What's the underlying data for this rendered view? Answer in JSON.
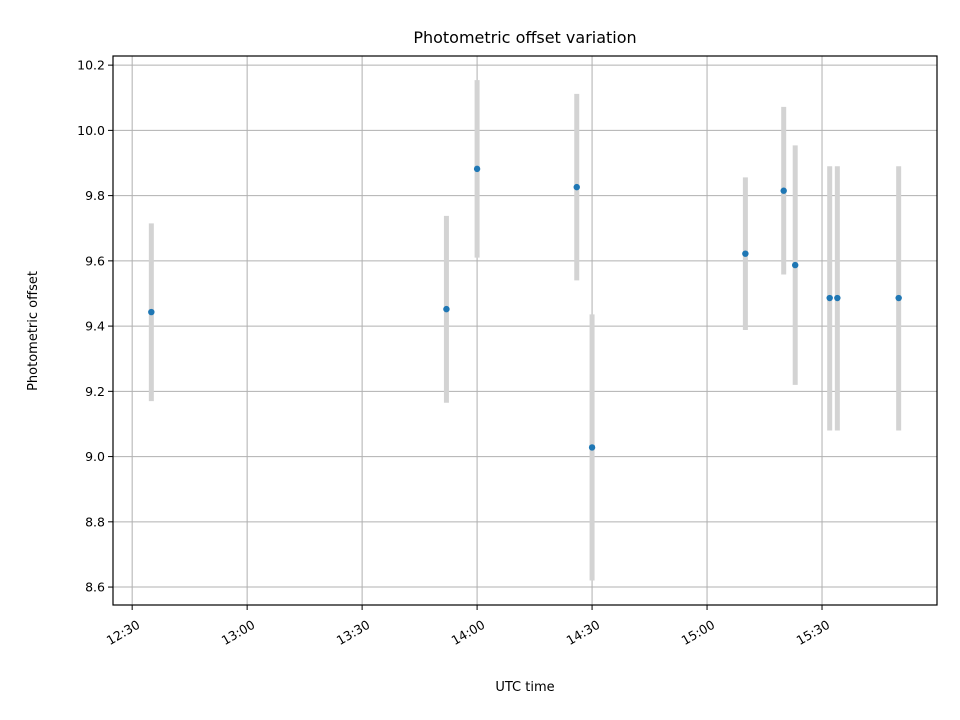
{
  "chart_data": {
    "type": "scatter",
    "title": "Photometric offset variation",
    "xlabel": "UTC time",
    "ylabel": "Photometric offset",
    "x_ticks": [
      "12:30",
      "13:00",
      "13:30",
      "14:00",
      "14:30",
      "15:00",
      "15:30"
    ],
    "xlim": [
      "12:25",
      "16:00"
    ],
    "y_ticks": [
      "8.6",
      "8.8",
      "9.0",
      "9.2",
      "9.4",
      "9.6",
      "9.8",
      "10.0",
      "10.2"
    ],
    "ylim": [
      8.545,
      10.228
    ],
    "grid": true,
    "colors": {
      "point": "#1f77b4",
      "errorbar": "#d3d3d3"
    },
    "series": [
      {
        "points": [
          {
            "x": "12:35",
            "y": 9.443,
            "yerr_low": 9.17,
            "yerr_high": 9.715
          },
          {
            "x": "13:52",
            "y": 9.452,
            "yerr_low": 9.165,
            "yerr_high": 9.738
          },
          {
            "x": "14:00",
            "y": 9.882,
            "yerr_low": 9.61,
            "yerr_high": 10.154
          },
          {
            "x": "14:26",
            "y": 9.826,
            "yerr_low": 9.54,
            "yerr_high": 10.112
          },
          {
            "x": "14:30",
            "y": 9.028,
            "yerr_low": 8.62,
            "yerr_high": 9.436
          },
          {
            "x": "15:10",
            "y": 9.622,
            "yerr_low": 9.388,
            "yerr_high": 9.856
          },
          {
            "x": "15:20",
            "y": 9.815,
            "yerr_low": 9.558,
            "yerr_high": 10.072
          },
          {
            "x": "15:23",
            "y": 9.587,
            "yerr_low": 9.22,
            "yerr_high": 9.954
          },
          {
            "x": "15:32",
            "y": 9.486,
            "yerr_low": 9.08,
            "yerr_high": 9.89
          },
          {
            "x": "15:34",
            "y": 9.486,
            "yerr_low": 9.08,
            "yerr_high": 9.89
          },
          {
            "x": "15:50",
            "y": 9.486,
            "yerr_low": 9.08,
            "yerr_high": 9.89
          }
        ]
      }
    ]
  }
}
